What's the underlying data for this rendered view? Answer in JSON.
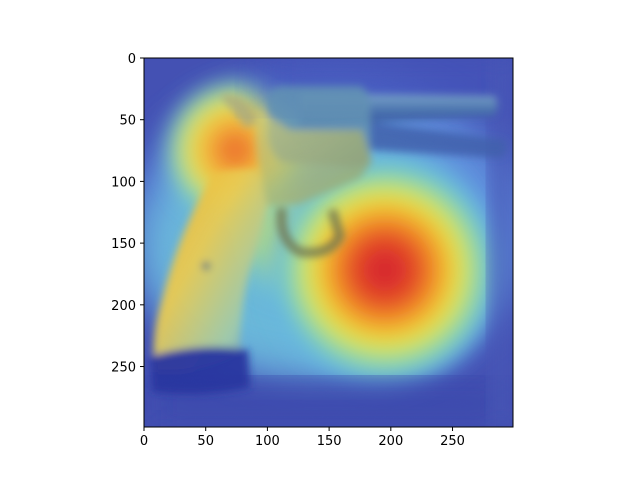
{
  "figure": {
    "background": "#ffffff",
    "image_subject": "revolver with heatmap overlay",
    "colormap": "jet",
    "overlay_alpha": 0.55
  },
  "axes": {
    "x_ticks": [
      "0",
      "50",
      "100",
      "150",
      "200",
      "250"
    ],
    "y_ticks": [
      "0",
      "50",
      "100",
      "150",
      "200",
      "250"
    ],
    "x_range": [
      0,
      299
    ],
    "y_range": [
      0,
      299
    ],
    "y_inverted": true
  },
  "heatmap": {
    "peak_hotspots": [
      {
        "x": 195,
        "y": 172,
        "level": 1.0
      },
      {
        "x": 75,
        "y": 80,
        "level": 0.75
      },
      {
        "x": 70,
        "y": 150,
        "level": 0.6
      }
    ],
    "low_regions": [
      {
        "region": "barrel / upper right",
        "level": 0.15
      },
      {
        "region": "grip bottom / lower left",
        "level": 0.05
      },
      {
        "region": "borders",
        "level": 0.15
      }
    ]
  }
}
